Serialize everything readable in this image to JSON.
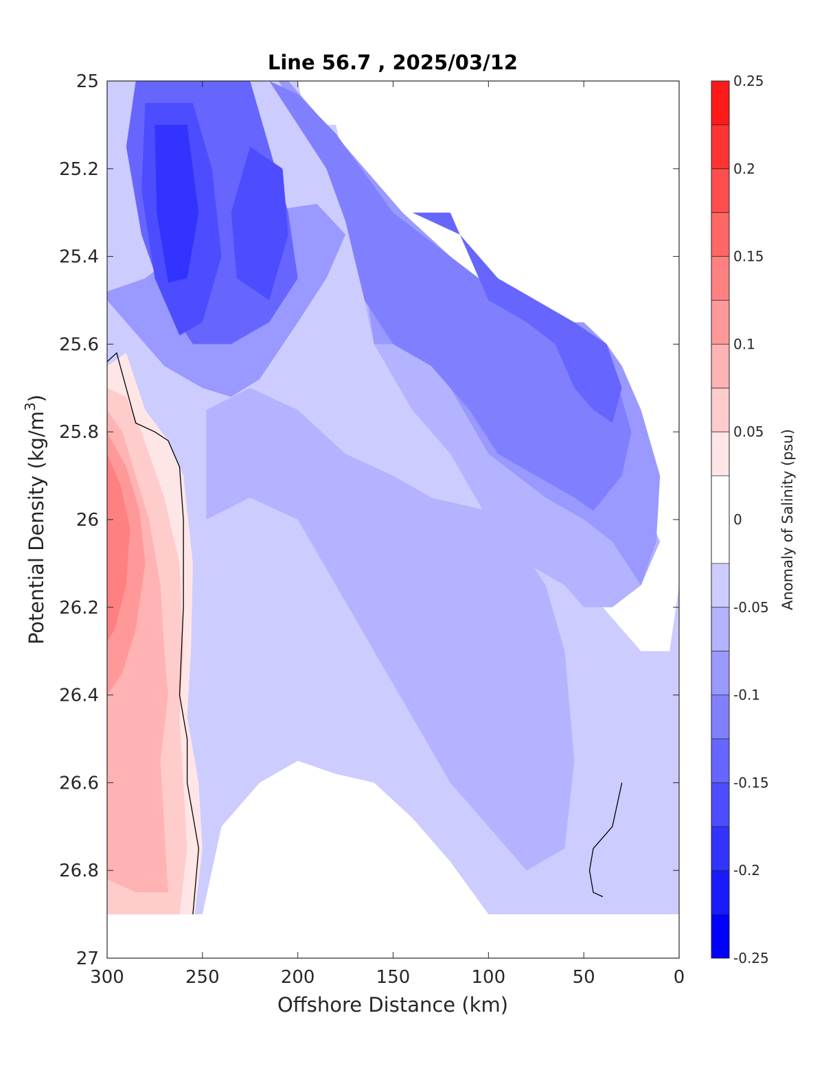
{
  "chart_data": {
    "type": "heatmap",
    "subtype": "filled-contour",
    "title": "Line 56.7 , 2025/03/12",
    "xlabel": "Offshore Distance (km)",
    "ylabel": "Potential Density (kg/m",
    "ylabel_sup": "3",
    "ylabel_end": ")",
    "xlim": [
      300,
      0
    ],
    "ylim": [
      27,
      25
    ],
    "x_reversed": true,
    "y_reversed": true,
    "xticks": [
      300,
      250,
      200,
      150,
      100,
      50,
      0
    ],
    "xtick_labels": [
      "300",
      "250",
      "200",
      "150",
      "100",
      "50",
      "0"
    ],
    "yticks": [
      25,
      25.2,
      25.4,
      25.6,
      25.8,
      26,
      26.2,
      26.4,
      26.6,
      26.8,
      27
    ],
    "ytick_labels": [
      "25",
      "25.2",
      "25.4",
      "25.6",
      "25.8",
      "26",
      "26.2",
      "26.4",
      "26.6",
      "26.8",
      "27"
    ],
    "grid": false,
    "colorbar": {
      "label": "Anomaly of Salinity (psu)",
      "range": [
        -0.25,
        0.25
      ],
      "levels": [
        -0.25,
        -0.225,
        -0.2,
        -0.175,
        -0.15,
        -0.125,
        -0.1,
        -0.075,
        -0.05,
        -0.025,
        0.025,
        0.05,
        0.075,
        0.1,
        0.125,
        0.15,
        0.175,
        0.2,
        0.225,
        0.25
      ],
      "ticks": [
        -0.25,
        -0.2,
        -0.15,
        -0.1,
        -0.05,
        0,
        0.05,
        0.1,
        0.15,
        0.2,
        0.25
      ],
      "tick_labels": [
        "-0.25",
        "-0.2",
        "-0.15",
        "-0.1",
        "-0.05",
        "0",
        "0.05",
        "0.1",
        "0.15",
        "0.2",
        "0.25"
      ],
      "colors": [
        "#0000ff",
        "#1a1aff",
        "#3333ff",
        "#4d4dff",
        "#6666ff",
        "#8080ff",
        "#9999ff",
        "#b3b3ff",
        "#ccccff",
        "#e6e6ff",
        "#ffffff",
        "#ffe6e6",
        "#ffcccc",
        "#ffb3b3",
        "#ff9999",
        "#ff8080",
        "#ff6666",
        "#ff4d4d",
        "#ff3333",
        "#ff1a1a",
        "#ff0000"
      ]
    },
    "contour_regions": [
      {
        "level": -0.05,
        "polygon": [
          [
            300,
            25
          ],
          [
            200,
            25
          ],
          [
            195,
            25.1
          ],
          [
            180,
            25.1
          ],
          [
            170,
            25.3
          ],
          [
            160,
            25.4
          ],
          [
            150,
            25.5
          ],
          [
            120,
            25.7
          ],
          [
            100,
            25.9
          ],
          [
            80,
            26
          ],
          [
            60,
            26.1
          ],
          [
            40,
            26.2
          ],
          [
            20,
            26.3
          ],
          [
            5,
            26.3
          ],
          [
            0,
            26.15
          ],
          [
            0,
            26.9
          ],
          [
            100,
            26.9
          ],
          [
            120,
            26.78
          ],
          [
            140,
            26.68
          ],
          [
            160,
            26.6
          ],
          [
            180,
            26.58
          ],
          [
            200,
            26.55
          ],
          [
            220,
            26.6
          ],
          [
            240,
            26.7
          ],
          [
            250,
            26.9
          ],
          [
            300,
            26.9
          ]
        ]
      },
      {
        "level": -0.075,
        "polygon": [
          [
            300,
            25
          ],
          [
            200,
            25
          ],
          [
            180,
            25.2
          ],
          [
            170,
            25.4
          ],
          [
            160,
            25.6
          ],
          [
            140,
            25.75
          ],
          [
            120,
            25.85
          ],
          [
            100,
            26
          ],
          [
            80,
            26.1
          ],
          [
            60,
            26.15
          ],
          [
            50,
            26.2
          ],
          [
            35,
            26.2
          ],
          [
            20,
            26.15
          ],
          [
            10,
            26.05
          ],
          [
            15,
            26
          ],
          [
            30,
            25.9
          ],
          [
            40,
            25.8
          ],
          [
            60,
            25.7
          ],
          [
            80,
            25.65
          ],
          [
            100,
            25.6
          ],
          [
            120,
            25.55
          ],
          [
            150,
            25.45
          ],
          [
            170,
            25.35
          ],
          [
            185,
            25.1
          ],
          [
            195,
            25.05
          ],
          [
            200,
            25
          ],
          [
            300,
            25
          ]
        ]
      },
      {
        "level": -0.075,
        "polygon": [
          [
            248,
            26.0
          ],
          [
            225,
            25.95
          ],
          [
            200,
            26.0
          ],
          [
            180,
            26.15
          ],
          [
            160,
            26.3
          ],
          [
            140,
            26.45
          ],
          [
            120,
            26.6
          ],
          [
            100,
            26.7
          ],
          [
            80,
            26.8
          ],
          [
            60,
            26.75
          ],
          [
            55,
            26.55
          ],
          [
            60,
            26.3
          ],
          [
            70,
            26.15
          ],
          [
            85,
            26.05
          ],
          [
            100,
            25.98
          ],
          [
            130,
            25.95
          ],
          [
            150,
            25.9
          ],
          [
            175,
            25.85
          ],
          [
            200,
            25.75
          ],
          [
            225,
            25.7
          ],
          [
            248,
            25.75
          ]
        ]
      },
      {
        "level": -0.1,
        "polygon": [
          [
            295,
            25
          ],
          [
            210,
            25
          ],
          [
            190,
            25.15
          ],
          [
            175,
            25.3
          ],
          [
            165,
            25.45
          ],
          [
            160,
            25.6
          ],
          [
            140,
            25.6
          ],
          [
            120,
            25.7
          ],
          [
            100,
            25.85
          ],
          [
            85,
            25.9
          ],
          [
            70,
            25.95
          ],
          [
            50,
            26.0
          ],
          [
            35,
            26.05
          ],
          [
            20,
            26.15
          ],
          [
            12,
            26.05
          ],
          [
            10,
            25.9
          ],
          [
            20,
            25.75
          ],
          [
            30,
            25.65
          ],
          [
            38,
            25.6
          ],
          [
            50,
            25.55
          ],
          [
            70,
            25.55
          ],
          [
            95,
            25.5
          ],
          [
            120,
            25.4
          ],
          [
            145,
            25.3
          ],
          [
            175,
            25.15
          ],
          [
            195,
            25.05
          ],
          [
            205,
            25
          ],
          [
            295,
            25
          ]
        ]
      },
      {
        "level": -0.1,
        "polygon": [
          [
            300,
            25.5
          ],
          [
            290,
            25.55
          ],
          [
            270,
            25.65
          ],
          [
            250,
            25.7
          ],
          [
            235,
            25.72
          ],
          [
            220,
            25.68
          ],
          [
            200,
            25.55
          ],
          [
            185,
            25.45
          ],
          [
            175,
            25.35
          ],
          [
            190,
            25.28
          ],
          [
            220,
            25.3
          ],
          [
            250,
            25.35
          ],
          [
            280,
            25.45
          ],
          [
            300,
            25.48
          ]
        ]
      },
      {
        "level": -0.125,
        "polygon": [
          [
            290,
            25
          ],
          [
            215,
            25
          ],
          [
            200,
            25.1
          ],
          [
            185,
            25.2
          ],
          [
            175,
            25.32
          ],
          [
            165,
            25.5
          ],
          [
            150,
            25.6
          ],
          [
            130,
            25.65
          ],
          [
            110,
            25.75
          ],
          [
            95,
            25.85
          ],
          [
            75,
            25.9
          ],
          [
            55,
            25.95
          ],
          [
            45,
            25.98
          ],
          [
            30,
            25.9
          ],
          [
            25,
            25.8
          ],
          [
            35,
            25.65
          ],
          [
            45,
            25.6
          ],
          [
            60,
            25.55
          ],
          [
            90,
            25.5
          ],
          [
            120,
            25.4
          ],
          [
            150,
            25.3
          ],
          [
            180,
            25.12
          ],
          [
            200,
            25.03
          ],
          [
            215,
            25
          ],
          [
            290,
            25
          ]
        ]
      },
      {
        "level": -0.15,
        "polygon": [
          [
            285,
            25
          ],
          [
            225,
            25
          ],
          [
            215,
            25.15
          ],
          [
            205,
            25.3
          ],
          [
            200,
            25.45
          ],
          [
            215,
            25.55
          ],
          [
            235,
            25.6
          ],
          [
            255,
            25.6
          ],
          [
            270,
            25.5
          ],
          [
            282,
            25.35
          ],
          [
            290,
            25.15
          ],
          [
            285,
            25
          ]
        ]
      },
      {
        "level": -0.15,
        "polygon": [
          [
            150,
            25.3
          ],
          [
            120,
            25.3
          ],
          [
            110,
            25.4
          ],
          [
            100,
            25.5
          ],
          [
            80,
            25.55
          ],
          [
            65,
            25.6
          ],
          [
            55,
            25.7
          ],
          [
            45,
            25.75
          ],
          [
            35,
            25.78
          ],
          [
            30,
            25.7
          ],
          [
            38,
            25.6
          ],
          [
            55,
            25.55
          ],
          [
            75,
            25.5
          ],
          [
            95,
            25.45
          ],
          [
            115,
            25.35
          ],
          [
            140,
            25.3
          ]
        ]
      },
      {
        "level": -0.175,
        "polygon": [
          [
            280,
            25.05
          ],
          [
            255,
            25.05
          ],
          [
            245,
            25.2
          ],
          [
            240,
            25.4
          ],
          [
            250,
            25.55
          ],
          [
            262,
            25.58
          ],
          [
            275,
            25.45
          ],
          [
            282,
            25.25
          ],
          [
            280,
            25.05
          ]
        ]
      },
      {
        "level": -0.175,
        "polygon": [
          [
            225,
            25.15
          ],
          [
            208,
            25.2
          ],
          [
            205,
            25.35
          ],
          [
            215,
            25.5
          ],
          [
            232,
            25.45
          ],
          [
            235,
            25.3
          ],
          [
            225,
            25.15
          ]
        ]
      },
      {
        "level": -0.2,
        "polygon": [
          [
            275,
            25.1
          ],
          [
            258,
            25.1
          ],
          [
            252,
            25.3
          ],
          [
            258,
            25.45
          ],
          [
            268,
            25.46
          ],
          [
            274,
            25.3
          ],
          [
            275,
            25.1
          ]
        ]
      },
      {
        "level": 0.025,
        "polygon": [
          [
            300,
            25.65
          ],
          [
            290,
            25.62
          ],
          [
            280,
            25.75
          ],
          [
            268,
            25.82
          ],
          [
            260,
            25.9
          ],
          [
            255,
            26.1
          ],
          [
            256,
            26.3
          ],
          [
            258,
            26.45
          ],
          [
            252,
            26.6
          ],
          [
            250,
            26.75
          ],
          [
            254,
            26.9
          ],
          [
            300,
            26.9
          ]
        ]
      },
      {
        "level": 0.05,
        "polygon": [
          [
            300,
            25.7
          ],
          [
            290,
            25.72
          ],
          [
            282,
            25.8
          ],
          [
            270,
            25.95
          ],
          [
            262,
            26.1
          ],
          [
            260,
            26.3
          ],
          [
            262,
            26.45
          ],
          [
            260,
            26.6
          ],
          [
            258,
            26.75
          ],
          [
            262,
            26.9
          ],
          [
            300,
            26.9
          ]
        ]
      },
      {
        "level": 0.075,
        "polygon": [
          [
            300,
            25.75
          ],
          [
            292,
            25.8
          ],
          [
            285,
            25.9
          ],
          [
            278,
            26.0
          ],
          [
            272,
            26.15
          ],
          [
            270,
            26.3
          ],
          [
            268,
            26.4
          ],
          [
            272,
            26.55
          ],
          [
            270,
            26.7
          ],
          [
            268,
            26.85
          ],
          [
            285,
            26.85
          ],
          [
            300,
            26.82
          ]
        ]
      },
      {
        "level": 0.1,
        "polygon": [
          [
            300,
            25.8
          ],
          [
            290,
            25.88
          ],
          [
            283,
            25.98
          ],
          [
            280,
            26.1
          ],
          [
            285,
            26.25
          ],
          [
            292,
            26.35
          ],
          [
            300,
            26.4
          ]
        ]
      },
      {
        "level": 0.125,
        "polygon": [
          [
            300,
            25.85
          ],
          [
            293,
            25.92
          ],
          [
            288,
            26.02
          ],
          [
            290,
            26.15
          ],
          [
            296,
            26.25
          ],
          [
            300,
            26.28
          ]
        ]
      }
    ],
    "contour_lines": [
      {
        "level": 0,
        "points": [
          [
            300,
            25.64
          ],
          [
            295,
            25.62
          ],
          [
            290,
            25.7
          ],
          [
            285,
            25.78
          ],
          [
            275,
            25.8
          ],
          [
            268,
            25.82
          ],
          [
            262,
            25.88
          ],
          [
            260,
            26.0
          ],
          [
            260,
            26.2
          ],
          [
            262,
            26.4
          ],
          [
            258,
            26.5
          ],
          [
            258,
            26.6
          ],
          [
            252,
            26.75
          ],
          [
            255,
            26.9
          ]
        ]
      },
      {
        "level": 0,
        "points": [
          [
            30,
            26.6
          ],
          [
            35,
            26.7
          ],
          [
            45,
            26.75
          ],
          [
            47,
            26.8
          ],
          [
            45,
            26.85
          ],
          [
            40,
            26.86
          ]
        ]
      }
    ]
  }
}
